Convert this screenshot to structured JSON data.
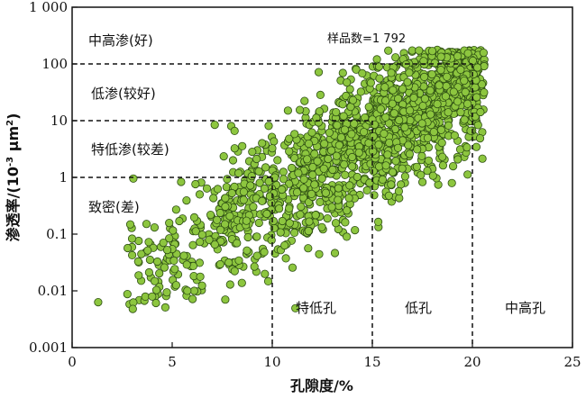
{
  "chart_data": {
    "type": "scatter",
    "x_axis": {
      "label": "孔隙度/%",
      "lim": [
        0,
        25
      ],
      "ticks": [
        0,
        5,
        10,
        15,
        20,
        25
      ],
      "tick_labels": [
        "0",
        "5",
        "10",
        "15",
        "20",
        "25"
      ]
    },
    "y_axis": {
      "label_main": "渗透率/(10",
      "label_sup1": "-3",
      "label_mid": " μm",
      "label_sup2": "2",
      "label_end": ")",
      "scale": "log",
      "lim": [
        0.001,
        1000
      ],
      "ticks": [
        0.001,
        0.01,
        0.1,
        1,
        10,
        100,
        1000
      ],
      "tick_labels": [
        "0.001",
        "0.01",
        "0.1",
        "1",
        "10",
        "100",
        "1 000"
      ]
    },
    "sample_count_label": "样品数=1 792",
    "permeability_classes": [
      {
        "label": "中高渗(好)",
        "threshold": 100
      },
      {
        "label": "低渗(较好)",
        "threshold": 10
      },
      {
        "label": "特低渗(较差)",
        "threshold": 1
      },
      {
        "label": "致密(差)",
        "threshold": null
      }
    ],
    "porosity_classes": [
      {
        "label": "特低孔",
        "threshold": 10
      },
      {
        "label": "低孔",
        "threshold": 15
      },
      {
        "label": "中高孔",
        "threshold": 20
      }
    ],
    "point_color": "#8dc63f",
    "point_edge_color": "#2e4f14",
    "n_points_drawn": 1792,
    "trend": {
      "x_start": 1.2,
      "x_end": 20.5,
      "log_y_start": -2.2,
      "log_y_end": 1.9
    }
  }
}
